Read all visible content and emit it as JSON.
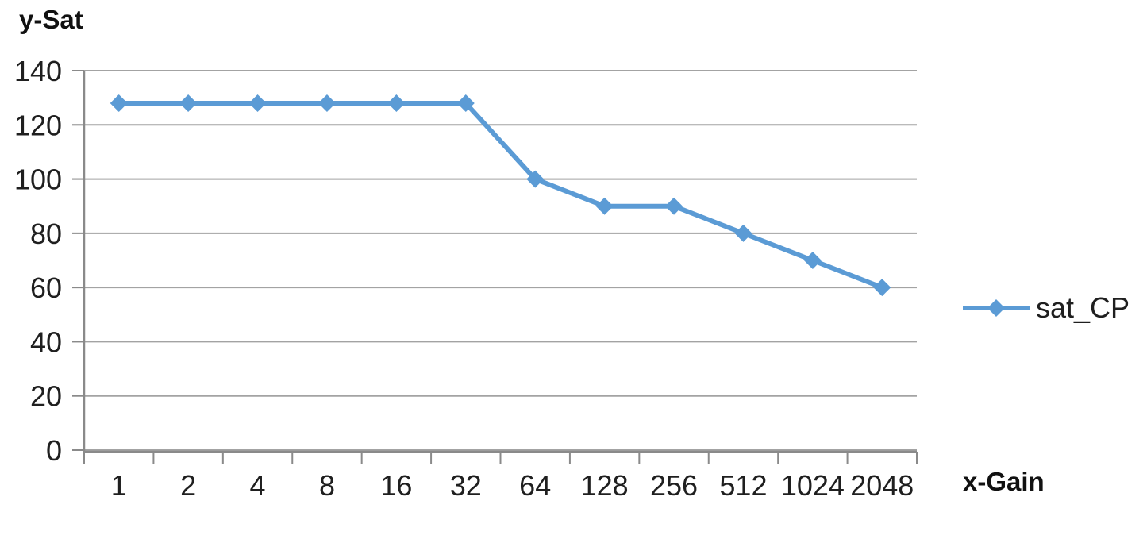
{
  "colors": {
    "series": "#5B9BD5",
    "grid": "#A3A3A3",
    "axis": "#8A8A8A",
    "text": "#1F1F1F"
  },
  "chart_data": {
    "type": "line",
    "title": "",
    "xlabel": "x-Gain",
    "ylabel": "y-Sat",
    "categories": [
      "1",
      "2",
      "4",
      "8",
      "16",
      "32",
      "64",
      "128",
      "256",
      "512",
      "1024",
      "2048"
    ],
    "series": [
      {
        "name": "sat_CP",
        "values": [
          128,
          128,
          128,
          128,
          128,
          128,
          100,
          90,
          90,
          80,
          70,
          60
        ],
        "color": "#5B9BD5",
        "marker": "diamond"
      }
    ],
    "ylim": [
      0,
      140
    ],
    "yticks": [
      0,
      20,
      40,
      60,
      80,
      100,
      120,
      140
    ],
    "grid": "horizontal",
    "legend_position": "right",
    "x_axis_scale_note": "categorical powers of two"
  }
}
